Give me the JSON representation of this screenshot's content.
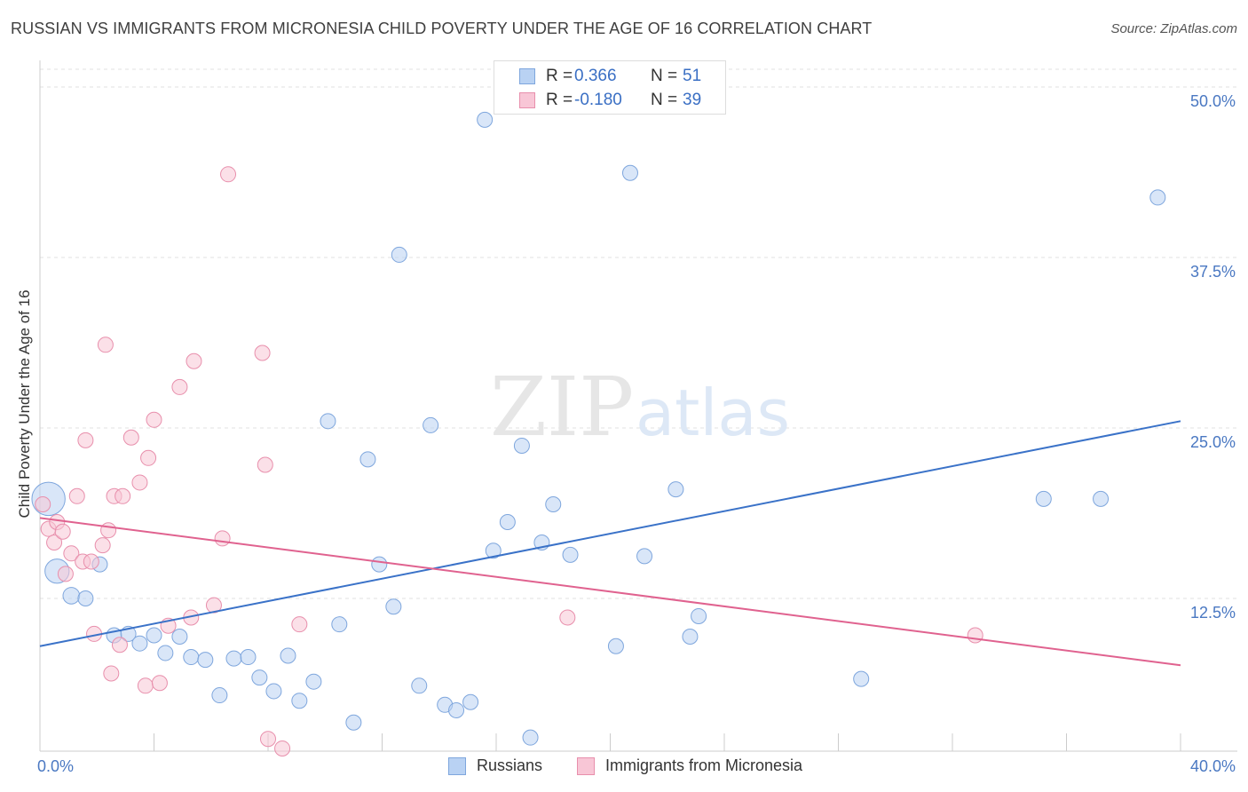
{
  "chart_data": {
    "type": "scatter",
    "title": "RUSSIAN VS IMMIGRANTS FROM MICRONESIA CHILD POVERTY UNDER THE AGE OF 16 CORRELATION CHART",
    "source": "Source: ZipAtlas.com",
    "xlabel": "",
    "ylabel": "Child Poverty Under the Age of 16",
    "xlim": [
      0,
      40
    ],
    "ylim": [
      0,
      50
    ],
    "x_tick_labels": [
      "0.0%",
      "40.0%"
    ],
    "y_ticks": [
      {
        "value": 12.5,
        "label": "12.5%"
      },
      {
        "value": 25.0,
        "label": "25.0%"
      },
      {
        "value": 37.5,
        "label": "37.5%"
      },
      {
        "value": 50.0,
        "label": "50.0%"
      }
    ],
    "grid": "horizontal dashed",
    "watermark": {
      "bold": "ZIP",
      "light": "atlas"
    },
    "stats_box": [
      {
        "r_label": "R =",
        "r_value": "0.366",
        "n_label": "N =",
        "n_value": "51"
      },
      {
        "r_label": "R =",
        "r_value": "-0.180",
        "n_label": "N =",
        "n_value": "39"
      }
    ],
    "series": [
      {
        "name": "Russians",
        "fill": "#b9d2f3",
        "stroke": "#7ea6dd",
        "line_color": "#3a72c8",
        "trend": [
          [
            0,
            9.0
          ],
          [
            40,
            25.5
          ]
        ],
        "points": [
          [
            0.3,
            19.8,
            2.2
          ],
          [
            0.6,
            14.5,
            1.6
          ],
          [
            1.1,
            12.7,
            1.1
          ],
          [
            1.6,
            12.5,
            1.0
          ],
          [
            2.1,
            15.0,
            1.0
          ],
          [
            2.6,
            9.8,
            1.0
          ],
          [
            3.1,
            9.9,
            1.0
          ],
          [
            3.5,
            9.2,
            1.0
          ],
          [
            4.0,
            9.8,
            1.0
          ],
          [
            4.4,
            8.5,
            1.0
          ],
          [
            4.9,
            9.7,
            1.0
          ],
          [
            5.3,
            8.2,
            1.0
          ],
          [
            5.8,
            8.0,
            1.0
          ],
          [
            6.3,
            5.4,
            1.0
          ],
          [
            6.8,
            8.1,
            1.0
          ],
          [
            7.3,
            8.2,
            1.0
          ],
          [
            7.7,
            6.7,
            1.0
          ],
          [
            8.2,
            5.7,
            1.0
          ],
          [
            8.7,
            8.3,
            1.0
          ],
          [
            9.1,
            5.0,
            1.0
          ],
          [
            9.6,
            6.4,
            1.0
          ],
          [
            10.1,
            25.5,
            1.0
          ],
          [
            10.5,
            10.6,
            1.0
          ],
          [
            11.0,
            3.4,
            1.0
          ],
          [
            11.5,
            22.7,
            1.0
          ],
          [
            11.9,
            15.0,
            1.0
          ],
          [
            12.4,
            11.9,
            1.0
          ],
          [
            12.6,
            37.7,
            1.0
          ],
          [
            13.3,
            6.1,
            1.0
          ],
          [
            13.7,
            25.2,
            1.0
          ],
          [
            14.2,
            4.7,
            1.0
          ],
          [
            14.6,
            4.3,
            1.0
          ],
          [
            15.1,
            4.9,
            1.0
          ],
          [
            15.6,
            47.6,
            1.0
          ],
          [
            15.9,
            16.0,
            1.0
          ],
          [
            16.4,
            18.1,
            1.0
          ],
          [
            16.9,
            23.7,
            1.0
          ],
          [
            17.2,
            2.3,
            1.0
          ],
          [
            17.6,
            16.6,
            1.0
          ],
          [
            18.0,
            19.4,
            1.0
          ],
          [
            18.6,
            15.7,
            1.0
          ],
          [
            20.2,
            9.0,
            1.0
          ],
          [
            20.7,
            43.7,
            1.0
          ],
          [
            21.2,
            15.6,
            1.0
          ],
          [
            22.3,
            20.5,
            1.0
          ],
          [
            22.8,
            9.7,
            1.0
          ],
          [
            23.1,
            11.2,
            1.0
          ],
          [
            28.8,
            6.6,
            1.0
          ],
          [
            35.2,
            19.8,
            1.0
          ],
          [
            37.2,
            19.8,
            1.0
          ],
          [
            39.2,
            41.9,
            1.0
          ]
        ]
      },
      {
        "name": "Immigrants from Micronesia",
        "fill": "#f8c6d6",
        "stroke": "#e88fac",
        "line_color": "#e0628f",
        "trend": [
          [
            0,
            18.4
          ],
          [
            40,
            7.6
          ]
        ],
        "points": [
          [
            0.1,
            19.4,
            1.0
          ],
          [
            0.3,
            17.6,
            1.0
          ],
          [
            0.5,
            16.6,
            1.0
          ],
          [
            0.6,
            18.1,
            1.0
          ],
          [
            0.8,
            17.4,
            1.0
          ],
          [
            0.9,
            14.3,
            1.0
          ],
          [
            1.1,
            15.8,
            1.0
          ],
          [
            1.3,
            20.0,
            1.0
          ],
          [
            1.5,
            15.2,
            1.0
          ],
          [
            1.6,
            24.1,
            1.0
          ],
          [
            1.8,
            15.2,
            1.0
          ],
          [
            1.9,
            9.9,
            1.0
          ],
          [
            2.2,
            16.4,
            1.0
          ],
          [
            2.4,
            17.5,
            1.0
          ],
          [
            2.5,
            7.0,
            1.0
          ],
          [
            2.6,
            20.0,
            1.0
          ],
          [
            2.8,
            9.1,
            1.0
          ],
          [
            2.9,
            20.0,
            1.0
          ],
          [
            3.2,
            24.3,
            1.0
          ],
          [
            3.5,
            21.0,
            1.0
          ],
          [
            3.7,
            6.1,
            1.0
          ],
          [
            3.8,
            22.8,
            1.0
          ],
          [
            4.0,
            25.6,
            1.0
          ],
          [
            4.2,
            6.3,
            1.0
          ],
          [
            4.5,
            10.5,
            1.0
          ],
          [
            4.9,
            28.0,
            1.0
          ],
          [
            5.3,
            11.1,
            1.0
          ],
          [
            5.4,
            29.9,
            1.0
          ],
          [
            6.1,
            12.0,
            1.0
          ],
          [
            6.4,
            16.9,
            1.0
          ],
          [
            6.6,
            43.6,
            1.0
          ],
          [
            7.8,
            30.5,
            1.0
          ],
          [
            7.9,
            22.3,
            1.0
          ],
          [
            8.0,
            2.2,
            1.0
          ],
          [
            8.5,
            1.5,
            1.0
          ],
          [
            9.1,
            10.6,
            1.0
          ],
          [
            2.3,
            31.1,
            1.0
          ],
          [
            18.5,
            11.1,
            1.0
          ],
          [
            32.8,
            9.8,
            1.0
          ]
        ]
      }
    ]
  }
}
